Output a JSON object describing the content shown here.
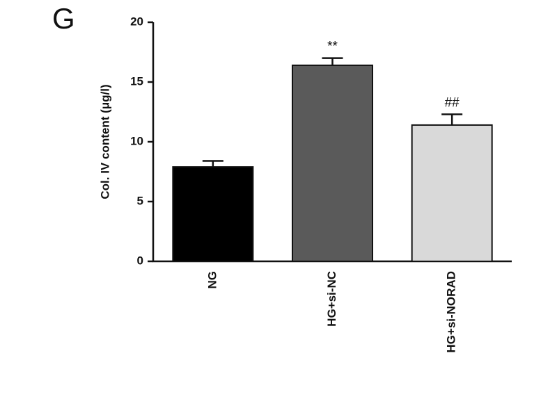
{
  "chart_data": {
    "type": "bar",
    "panel_label": "G",
    "y_label": "Col. IV content (μg/l)",
    "categories": [
      "NG",
      "HG+si-NC",
      "HG+si-NORAD"
    ],
    "values": [
      7.9,
      16.4,
      11.4
    ],
    "errors": [
      0.5,
      0.6,
      0.9
    ],
    "annotations": [
      null,
      "**",
      "##"
    ],
    "colors": [
      "#000000",
      "#5a5a5a",
      "#d9d9d9"
    ],
    "ylim": [
      0,
      20
    ],
    "yticks": [
      0,
      5,
      10,
      15,
      20
    ],
    "grid": false
  }
}
